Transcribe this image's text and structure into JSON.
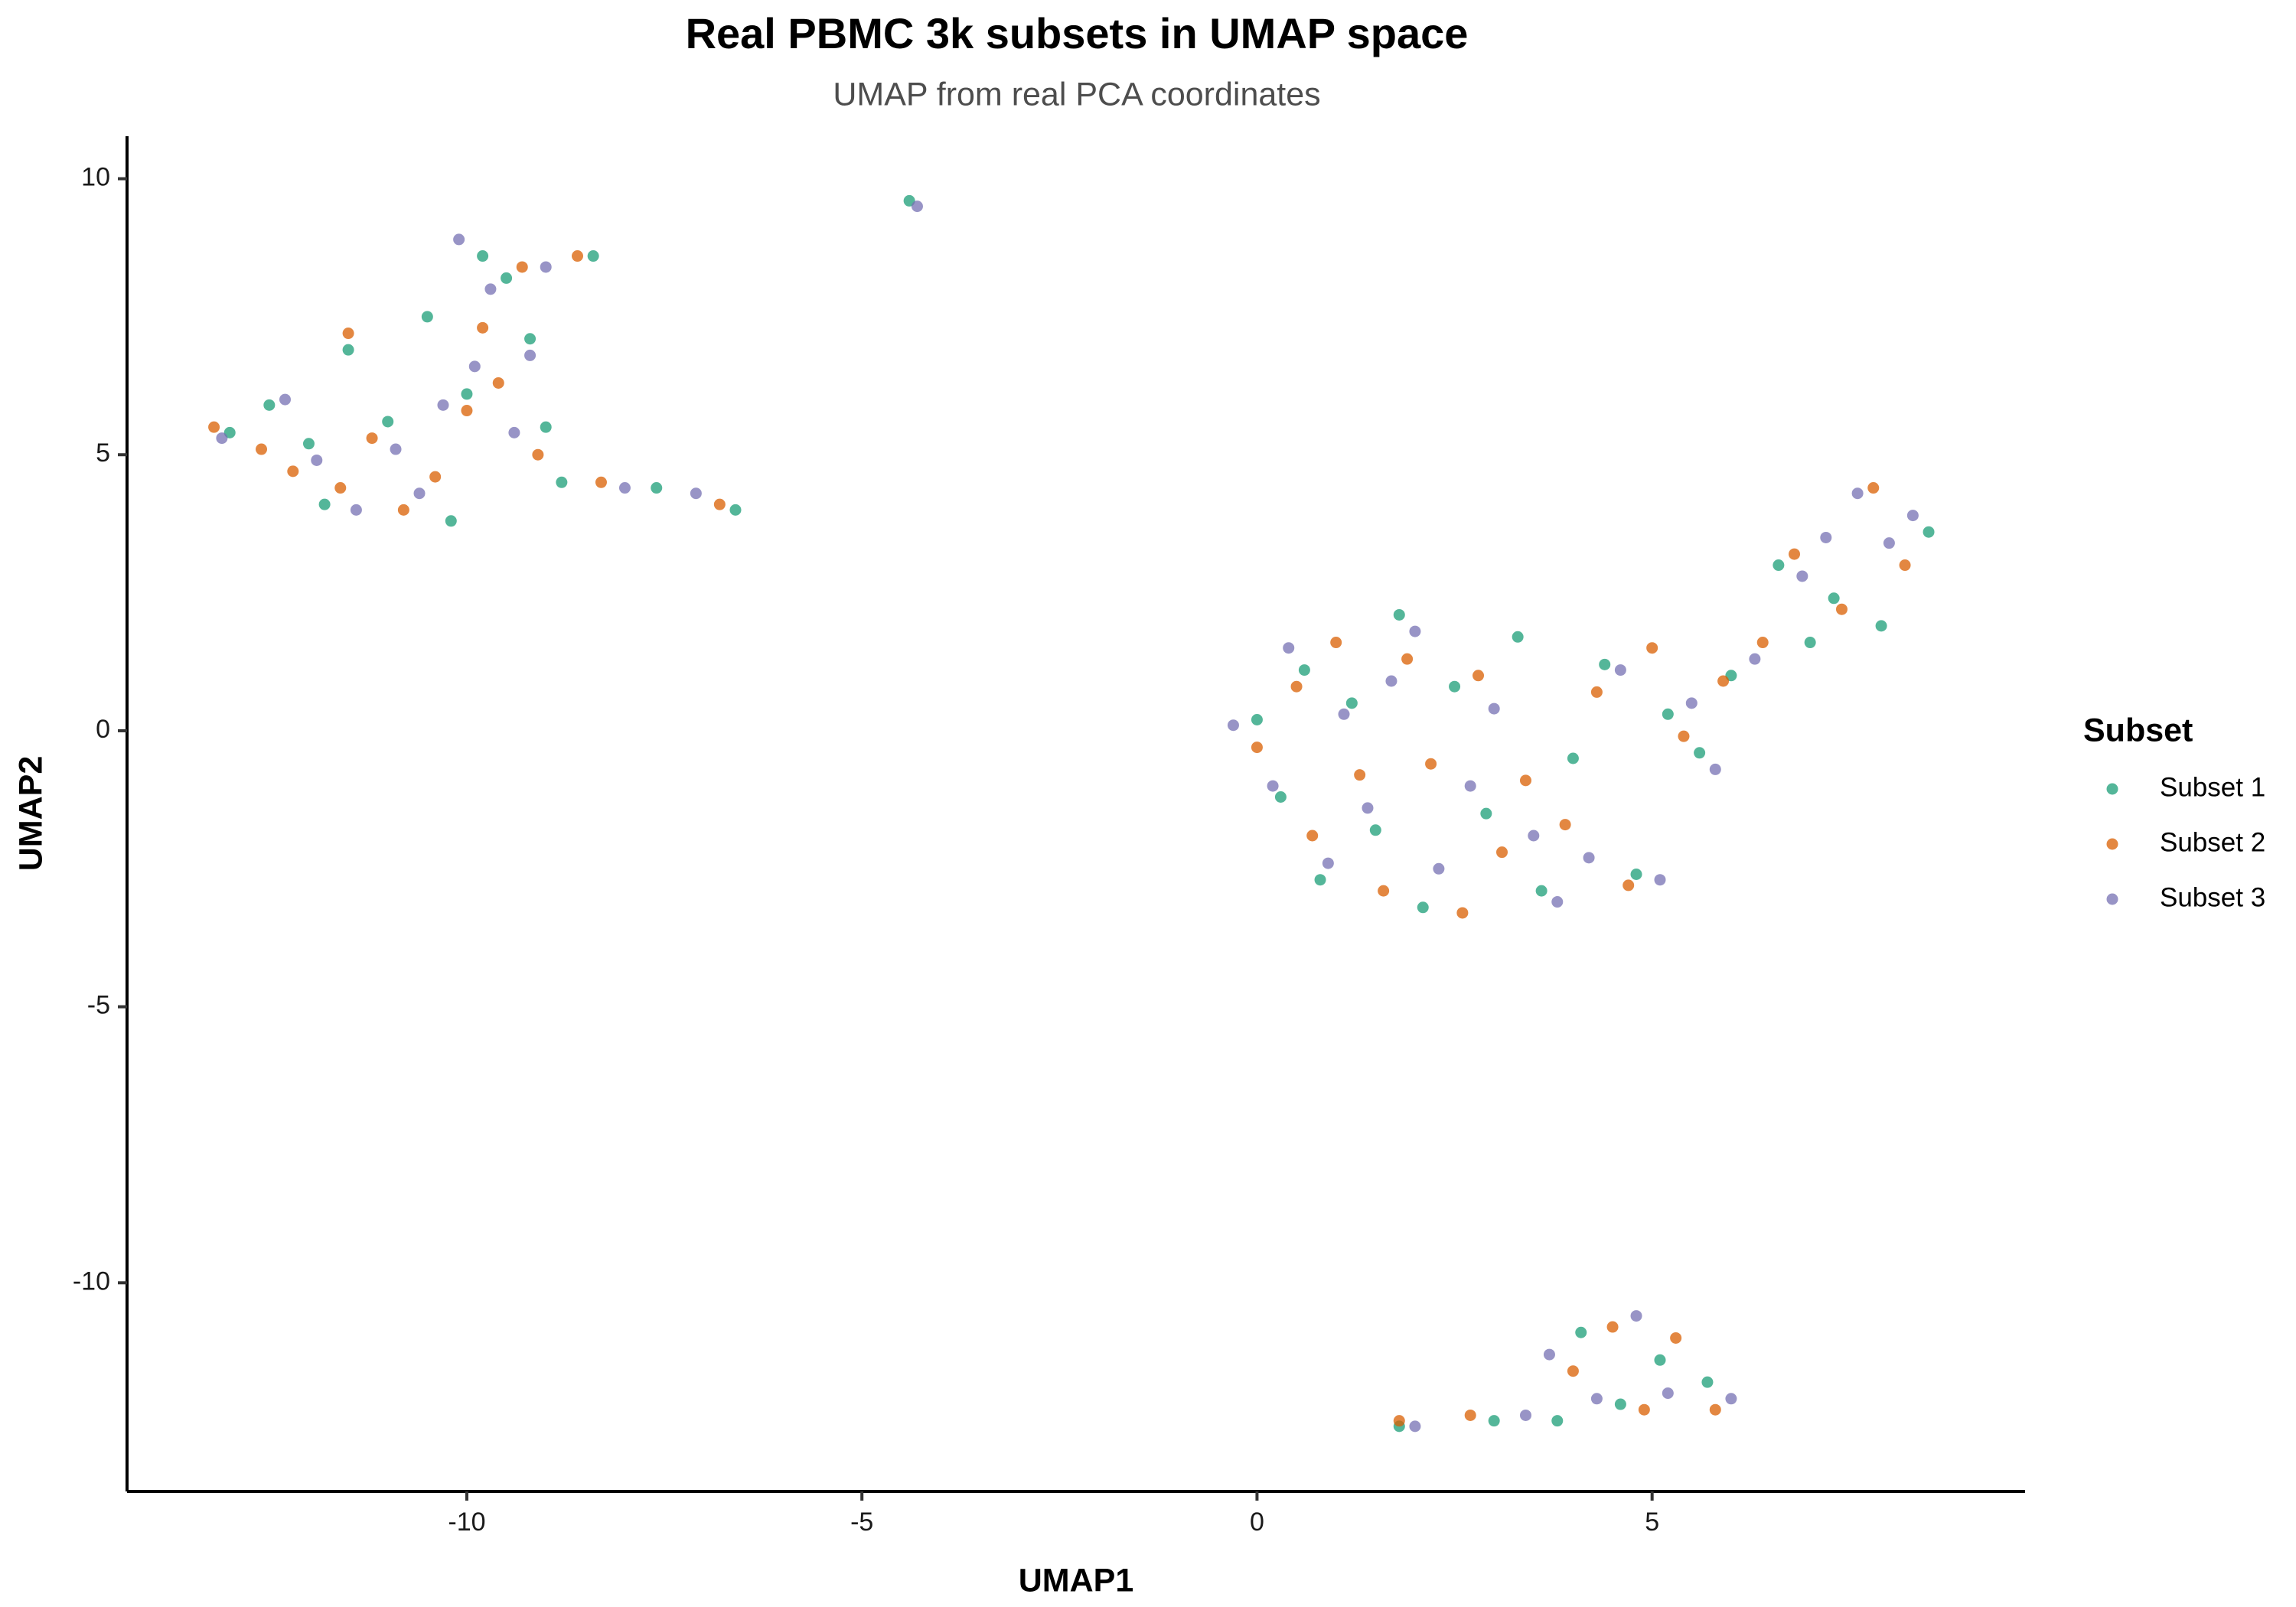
{
  "chart_data": {
    "type": "scatter",
    "title": "Real PBMC 3k subsets in UMAP space",
    "subtitle": "UMAP from real PCA coordinates",
    "x_label": "UMAP1",
    "y_label": "UMAP2",
    "legend_title": "Subset",
    "legend_position": "right",
    "xlim": [
      -14.3,
      9.72
    ],
    "ylim": [
      -13.78,
      10.77
    ],
    "xticks": [
      -10,
      -5,
      0,
      5
    ],
    "yticks": [
      -10,
      -5,
      0,
      5,
      10
    ],
    "grid": false,
    "series": [
      {
        "name": "Subset 1",
        "color": "#1b9e77",
        "x": [
          -13,
          -12.5,
          -12,
          -11.5,
          -11,
          -10.5,
          -10,
          -9.8,
          -9.5,
          -9.2,
          -9,
          -10.2,
          -11.8,
          -8.4,
          -8.8,
          -7.6,
          -6.6,
          -4.4,
          0,
          0.3,
          0.6,
          0.8,
          1.2,
          1.5,
          1.8,
          2.1,
          2.5,
          2.9,
          3.3,
          3.6,
          4.0,
          4.4,
          4.8,
          5.2,
          5.6,
          6.0,
          6.6,
          7.0,
          7.3,
          7.9,
          8.5,
          3.8,
          4.1,
          4.6,
          5.1,
          5.7,
          1.8,
          3.0
        ],
        "values": [
          5.4,
          5.9,
          5.2,
          6.9,
          5.6,
          7.5,
          6.1,
          8.6,
          8.2,
          7.1,
          5.5,
          3.8,
          4.1,
          8.6,
          4.5,
          4.4,
          4.0,
          9.6,
          0.2,
          -1.2,
          1.1,
          -2.7,
          0.5,
          -1.8,
          2.1,
          -3.2,
          0.8,
          -1.5,
          1.7,
          -2.9,
          -0.5,
          1.2,
          -2.6,
          0.3,
          -0.4,
          1.0,
          3.0,
          1.6,
          2.4,
          1.9,
          3.6,
          -12.5,
          -10.9,
          -12.2,
          -11.4,
          -11.8,
          -12.6,
          -12.5
        ]
      },
      {
        "name": "Subset 2",
        "color": "#d95f02",
        "x": [
          -13.2,
          -12.6,
          -12.2,
          -11.6,
          -11.2,
          -10.8,
          -10.4,
          -10.0,
          -9.8,
          -9.6,
          -9.3,
          -9.1,
          -11.5,
          -8.3,
          -8.6,
          -6.8,
          0,
          0.5,
          0.7,
          1.0,
          1.3,
          1.6,
          1.9,
          2.2,
          2.6,
          2.8,
          3.1,
          3.4,
          3.9,
          4.3,
          4.7,
          5.0,
          5.4,
          5.9,
          6.4,
          6.8,
          7.4,
          7.8,
          8.2,
          4.0,
          4.5,
          4.9,
          5.3,
          5.8,
          1.8,
          2.7
        ],
        "values": [
          5.5,
          5.1,
          4.7,
          4.4,
          5.3,
          4.0,
          4.6,
          5.8,
          7.3,
          6.3,
          8.4,
          5.0,
          7.2,
          4.5,
          8.6,
          4.1,
          -0.3,
          0.8,
          -1.9,
          1.6,
          -0.8,
          -2.9,
          1.3,
          -0.6,
          -3.3,
          1.0,
          -2.2,
          -0.9,
          -1.7,
          0.7,
          -2.8,
          1.5,
          -0.1,
          0.9,
          1.6,
          3.2,
          2.2,
          4.4,
          3.0,
          -11.6,
          -10.8,
          -12.3,
          -11.0,
          -12.3,
          -12.5,
          -12.4
        ]
      },
      {
        "name": "Subset 3",
        "color": "#7570b3",
        "x": [
          -13.1,
          -12.3,
          -11.9,
          -11.4,
          -10.9,
          -10.6,
          -10.1,
          -9.9,
          -9.7,
          -9.4,
          -9.2,
          -9.0,
          -10.3,
          -8.0,
          -7.1,
          -4.3,
          -0.3,
          0.2,
          0.4,
          0.9,
          1.1,
          1.4,
          1.7,
          2.0,
          2.3,
          2.7,
          3.0,
          3.5,
          3.8,
          4.2,
          4.6,
          5.1,
          5.5,
          5.8,
          6.3,
          6.9,
          7.2,
          7.6,
          8.0,
          8.3,
          3.7,
          4.3,
          4.8,
          5.2,
          6.0,
          2.0,
          3.4
        ],
        "values": [
          5.3,
          6.0,
          4.9,
          4.0,
          5.1,
          4.3,
          8.9,
          6.6,
          8.0,
          5.4,
          6.8,
          8.4,
          5.9,
          4.4,
          4.3,
          9.5,
          0.1,
          -1.0,
          1.5,
          -2.4,
          0.3,
          -1.4,
          0.9,
          1.8,
          -2.5,
          -1.0,
          0.4,
          -1.9,
          -3.1,
          -2.3,
          1.1,
          -2.7,
          0.5,
          -0.7,
          1.3,
          2.8,
          3.5,
          4.3,
          3.4,
          3.9,
          -11.3,
          -12.1,
          -10.6,
          -12.0,
          -12.1,
          -12.6,
          -12.4
        ]
      }
    ]
  }
}
